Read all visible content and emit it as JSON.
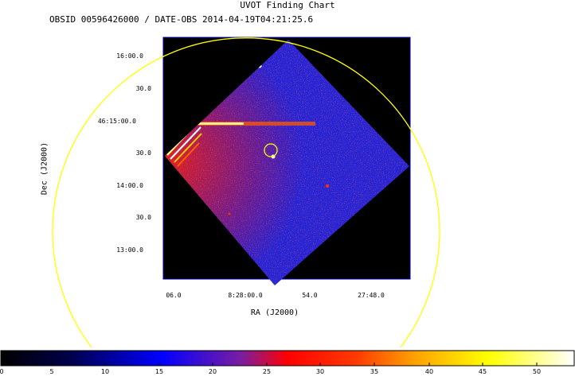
{
  "chart_data": {
    "type": "heatmap",
    "title": "UVOT Finding Chart",
    "subtitle": "OBSID 00596426000 / DATE-OBS 2014-04-19T04:21:25.6",
    "xlabel": "RA (J2000)",
    "ylabel": "Dec (J2000)",
    "x_ticks": [
      "06.0",
      "8:28:00.0",
      "54.0",
      "27:48.0"
    ],
    "y_ticks": [
      "16:00.0",
      "30.0",
      "46:15:00.0",
      "30.0",
      "14:00.0",
      "30.0",
      "13:00.0"
    ],
    "colorbar": {
      "min": 0,
      "max": 53,
      "ticks": [
        "0",
        "5",
        "10",
        "15",
        "20",
        "25",
        "30",
        "35",
        "40",
        "45",
        "50"
      ]
    },
    "colormap": [
      "#000000",
      "#0000ff",
      "#ff0000",
      "#ffff00",
      "#ffffff"
    ],
    "overlays": [
      "yellow circle: target position",
      "yellow circle: field of view"
    ]
  }
}
